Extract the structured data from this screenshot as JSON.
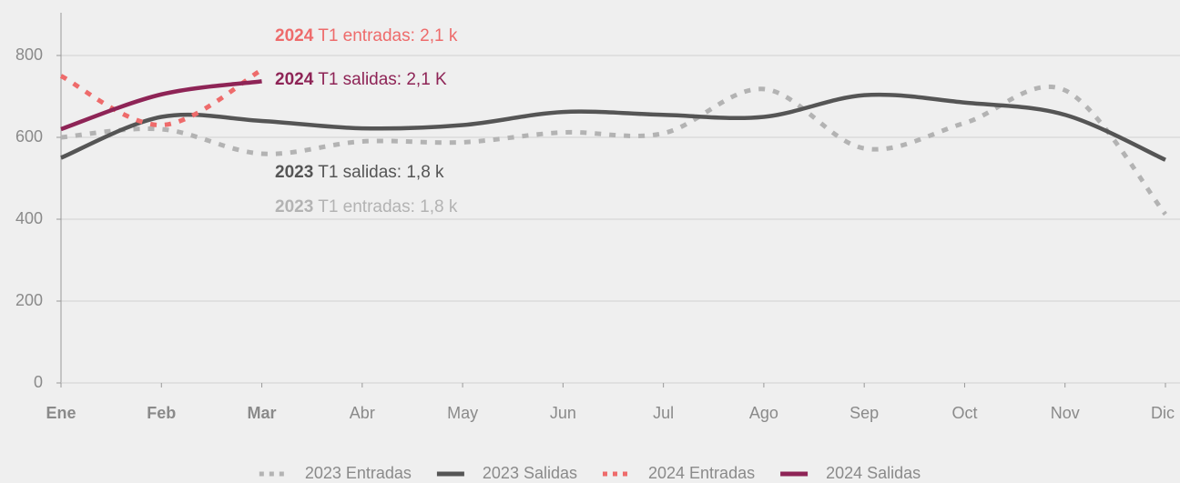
{
  "chart_data": {
    "type": "line",
    "categories": [
      "Ene",
      "Feb",
      "Mar",
      "Abr",
      "May",
      "Jun",
      "Jul",
      "Ago",
      "Sep",
      "Oct",
      "Nov",
      "Dic"
    ],
    "highlight_categories": [
      0,
      1,
      2
    ],
    "ylim": [
      0,
      900
    ],
    "yticks": [
      0,
      200,
      400,
      600,
      800
    ],
    "grid": true,
    "legend": "bottom",
    "series": [
      {
        "name": "2023 Entradas",
        "color": "#b3b3b3",
        "dash": true,
        "values": [
          600,
          620,
          560,
          590,
          588,
          612,
          610,
          718,
          573,
          635,
          715,
          412
        ]
      },
      {
        "name": "2023 Salidas",
        "color": "#555555",
        "dash": false,
        "values": [
          550,
          650,
          640,
          622,
          630,
          662,
          655,
          650,
          703,
          685,
          655,
          545
        ]
      },
      {
        "name": "2024 Entradas",
        "color": "#ee6b6b",
        "dash": true,
        "values": [
          750,
          630,
          765,
          null,
          null,
          null,
          null,
          null,
          null,
          null,
          null,
          null
        ]
      },
      {
        "name": "2024 Salidas",
        "color": "#8e2456",
        "dash": false,
        "values": [
          620,
          705,
          737,
          null,
          null,
          null,
          null,
          null,
          null,
          null,
          null,
          null
        ]
      }
    ],
    "annotations": [
      {
        "bold": "2024",
        "text": " T1 entradas: 2,1 k",
        "color": "#ee6b6b"
      },
      {
        "bold": "2024",
        "text": " T1 salidas: 2,1 K",
        "color": "#8e2456"
      },
      {
        "bold": "2023",
        "text": " T1 salidas: 1,8 k",
        "color": "#555555"
      },
      {
        "bold": "2023",
        "text": " T1 entradas: 1,8 k",
        "color": "#b3b3b3"
      }
    ]
  }
}
